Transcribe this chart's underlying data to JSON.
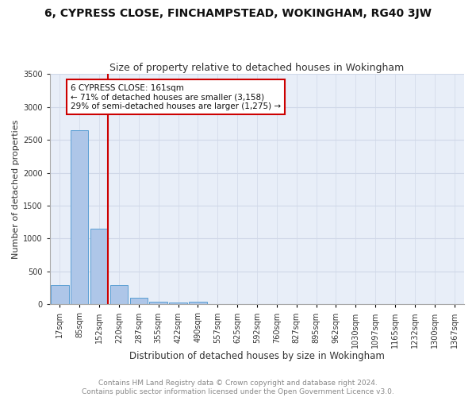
{
  "title1": "6, CYPRESS CLOSE, FINCHAMPSTEAD, WOKINGHAM, RG40 3JW",
  "title2": "Size of property relative to detached houses in Wokingham",
  "xlabel": "Distribution of detached houses by size in Wokingham",
  "ylabel": "Number of detached properties",
  "categories": [
    "17sqm",
    "85sqm",
    "152sqm",
    "220sqm",
    "287sqm",
    "355sqm",
    "422sqm",
    "490sqm",
    "557sqm",
    "625sqm",
    "592sqm",
    "760sqm",
    "827sqm",
    "895sqm",
    "962sqm",
    "1030sqm",
    "1097sqm",
    "1165sqm",
    "1232sqm",
    "1300sqm",
    "1367sqm"
  ],
  "values": [
    290,
    2640,
    1155,
    295,
    105,
    45,
    28,
    38,
    0,
    0,
    0,
    0,
    0,
    0,
    0,
    0,
    0,
    0,
    0,
    0,
    0
  ],
  "bar_color": "#aec6e8",
  "bar_edge_color": "#5a9fd4",
  "vline_color": "#cc0000",
  "annotation_text": "6 CYPRESS CLOSE: 161sqm\n← 71% of detached houses are smaller (3,158)\n29% of semi-detached houses are larger (1,275) →",
  "annotation_box_color": "#ffffff",
  "annotation_box_edge": "#cc0000",
  "ylim": [
    0,
    3500
  ],
  "yticks": [
    0,
    500,
    1000,
    1500,
    2000,
    2500,
    3000,
    3500
  ],
  "grid_color": "#d0d8e8",
  "background_color": "#e8eef8",
  "figure_bg": "#ffffff",
  "footer1": "Contains HM Land Registry data © Crown copyright and database right 2024.",
  "footer2": "Contains public sector information licensed under the Open Government Licence v3.0.",
  "title1_fontsize": 10,
  "title2_fontsize": 9,
  "xlabel_fontsize": 8.5,
  "ylabel_fontsize": 8,
  "tick_fontsize": 7,
  "footer_fontsize": 6.5,
  "annotation_fontsize": 7.5
}
